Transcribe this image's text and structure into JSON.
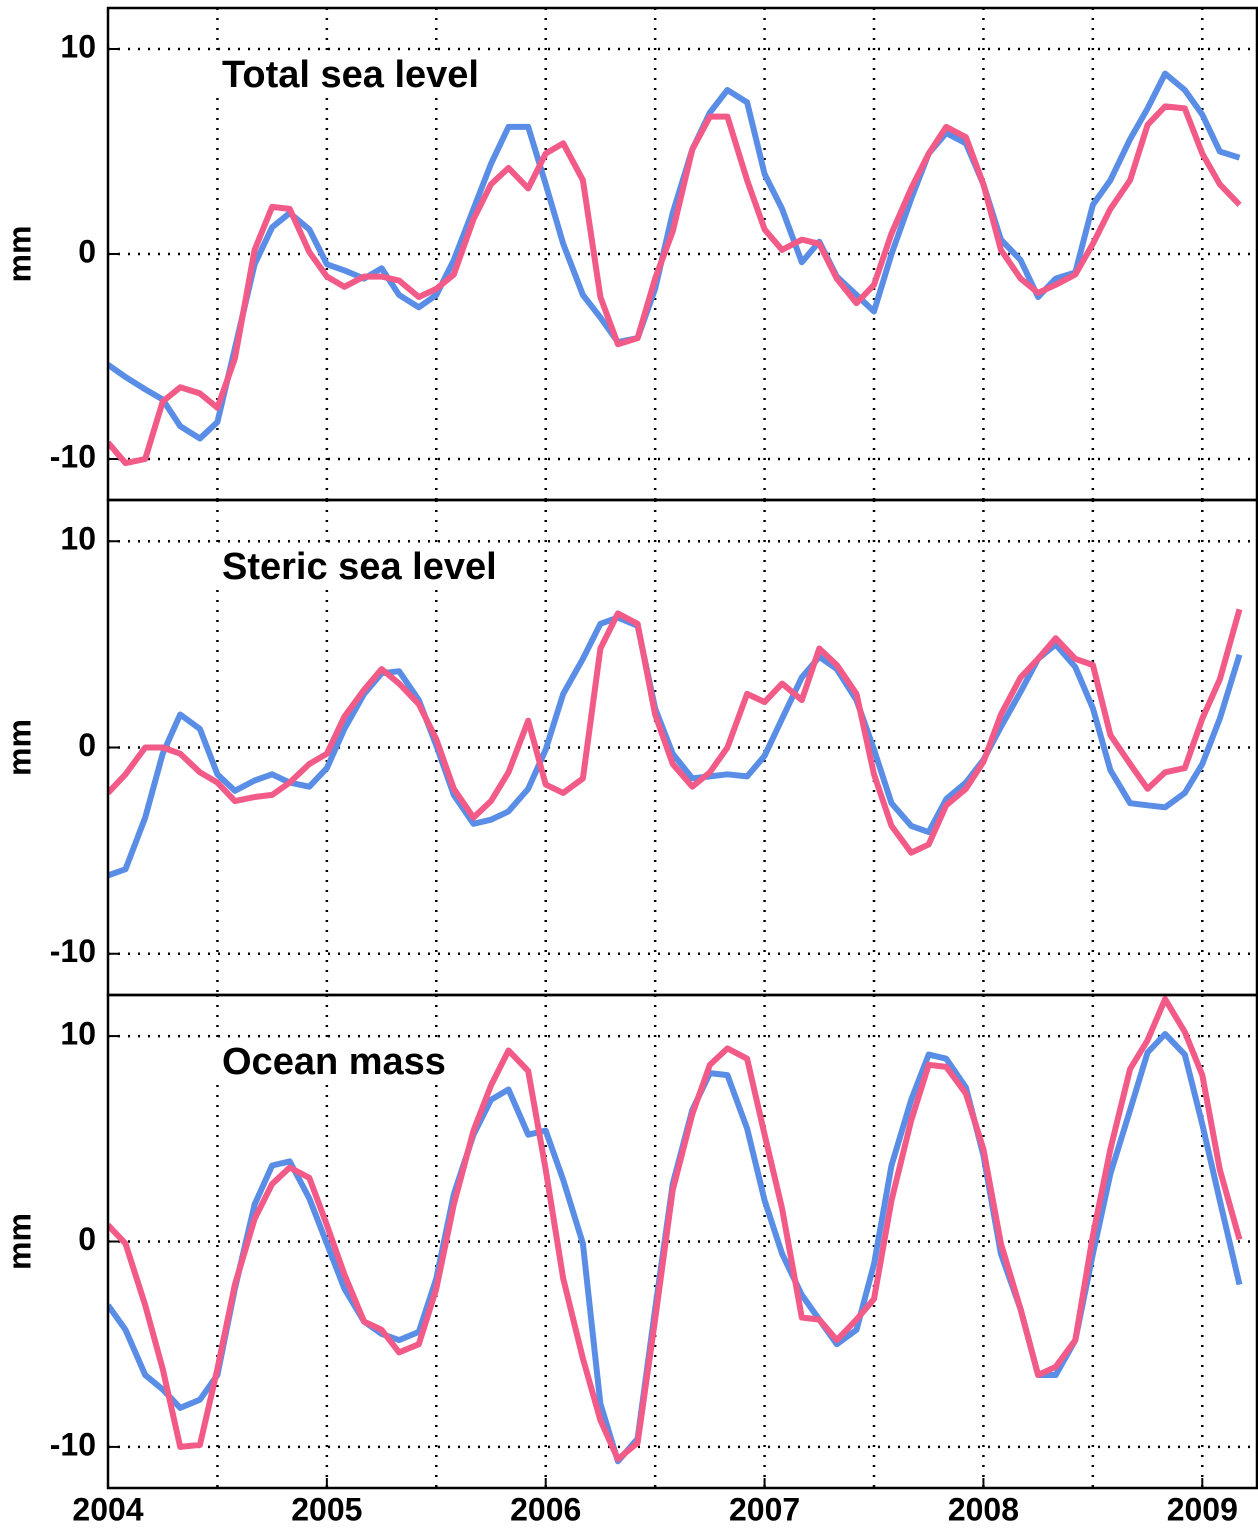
{
  "chart_data": [
    {
      "type": "line",
      "title": "Total sea level",
      "ylabel": "mm",
      "x": [
        2004,
        2004.08,
        2004.17,
        2004.25,
        2004.33,
        2004.42,
        2004.5,
        2004.58,
        2004.67,
        2004.75,
        2004.83,
        2004.92,
        2005,
        2005.08,
        2005.17,
        2005.25,
        2005.33,
        2005.42,
        2005.5,
        2005.58,
        2005.67,
        2005.75,
        2005.83,
        2005.92,
        2006,
        2006.08,
        2006.17,
        2006.25,
        2006.33,
        2006.42,
        2006.5,
        2006.58,
        2006.67,
        2006.75,
        2006.83,
        2006.92,
        2007,
        2007.08,
        2007.17,
        2007.25,
        2007.33,
        2007.42,
        2007.5,
        2007.58,
        2007.67,
        2007.75,
        2007.83,
        2007.92,
        2008,
        2008.08,
        2008.17,
        2008.25,
        2008.33,
        2008.42,
        2008.5,
        2008.58,
        2008.67,
        2008.75,
        2008.83,
        2008.92,
        2009,
        2009.08,
        2009.17
      ],
      "series": [
        {
          "color": "#5a8ee6",
          "values": [
            -5.4,
            -6.0,
            -6.6,
            -7.1,
            -8.4,
            -9.0,
            -8.2,
            -4.6,
            -0.5,
            1.3,
            2.0,
            1.2,
            -0.5,
            -0.8,
            -1.2,
            -0.7,
            -2.0,
            -2.6,
            -2.0,
            -0.3,
            2.2,
            4.4,
            6.2,
            6.2,
            3.4,
            0.5,
            -2.0,
            -3.1,
            -4.3,
            -4.1,
            -1.7,
            2.0,
            5.1,
            6.9,
            8.0,
            7.4,
            3.9,
            2.2,
            -0.4,
            0.6,
            -1.1,
            -2.0,
            -2.8,
            0,
            2.7,
            4.9,
            5.9,
            5.4,
            3.4,
            0.7,
            -0.3,
            -2.1,
            -1.2,
            -0.9,
            2.4,
            3.6,
            5.6,
            7.1,
            8.8,
            8.0,
            6.8,
            5.0,
            4.7
          ]
        },
        {
          "color": "#f25a88",
          "values": [
            -9.2,
            -10.2,
            -10.0,
            -7.2,
            -6.5,
            -6.8,
            -7.5,
            -5.1,
            0.2,
            2.3,
            2.2,
            0.1,
            -1.1,
            -1.6,
            -1.1,
            -1.1,
            -1.3,
            -2.1,
            -1.7,
            -1.0,
            1.7,
            3.4,
            4.2,
            3.2,
            4.9,
            5.4,
            3.6,
            -2.1,
            -4.4,
            -4.1,
            -1.2,
            1.1,
            5.1,
            6.7,
            6.7,
            3.6,
            1.2,
            0.2,
            0.7,
            0.5,
            -1.2,
            -2.4,
            -1.5,
            1.0,
            3.2,
            4.9,
            6.2,
            5.7,
            3.4,
            0.2,
            -1.2,
            -1.9,
            -1.5,
            -1.0,
            0.5,
            2.2,
            3.6,
            6.3,
            7.2,
            7.1,
            4.9,
            3.4,
            2.4
          ]
        }
      ],
      "xlim": [
        2004,
        2009.25
      ],
      "xgrid": [
        2004,
        2004.5,
        2005,
        2005.5,
        2006,
        2006.5,
        2007,
        2007.5,
        2008,
        2008.5,
        2009
      ],
      "ylim": [
        -12,
        12
      ],
      "yticks": [
        -10,
        0,
        10
      ],
      "grid": true
    },
    {
      "type": "line",
      "title": "Steric sea level",
      "ylabel": "mm",
      "x": [
        2004,
        2004.08,
        2004.17,
        2004.25,
        2004.33,
        2004.42,
        2004.5,
        2004.58,
        2004.67,
        2004.75,
        2004.83,
        2004.92,
        2005,
        2005.08,
        2005.17,
        2005.25,
        2005.33,
        2005.42,
        2005.5,
        2005.58,
        2005.67,
        2005.75,
        2005.83,
        2005.92,
        2006,
        2006.08,
        2006.17,
        2006.25,
        2006.33,
        2006.42,
        2006.5,
        2006.58,
        2006.67,
        2006.75,
        2006.83,
        2006.92,
        2007,
        2007.08,
        2007.17,
        2007.25,
        2007.33,
        2007.42,
        2007.5,
        2007.58,
        2007.67,
        2007.75,
        2007.83,
        2007.92,
        2008,
        2008.08,
        2008.17,
        2008.25,
        2008.33,
        2008.42,
        2008.5,
        2008.58,
        2008.67,
        2008.75,
        2008.83,
        2008.92,
        2009,
        2009.08,
        2009.17
      ],
      "series": [
        {
          "color": "#5a8ee6",
          "values": [
            -6.2,
            -5.9,
            -3.4,
            -0.3,
            1.6,
            0.9,
            -1.3,
            -2.1,
            -1.6,
            -1.3,
            -1.7,
            -1.9,
            -1.0,
            0.9,
            2.6,
            3.6,
            3.7,
            2.3,
            0.1,
            -2.3,
            -3.7,
            -3.5,
            -3.1,
            -2.0,
            -0.1,
            2.6,
            4.3,
            6.0,
            6.3,
            5.9,
            1.9,
            -0.3,
            -1.5,
            -1.4,
            -1.3,
            -1.4,
            -0.4,
            1.4,
            3.4,
            4.4,
            3.8,
            2.3,
            -0.1,
            -2.7,
            -3.8,
            -4.1,
            -2.5,
            -1.7,
            -0.6,
            1.0,
            2.7,
            4.3,
            5.0,
            3.9,
            1.9,
            -1.1,
            -2.7,
            -2.8,
            -2.9,
            -2.2,
            -0.8,
            1.4,
            4.5
          ]
        },
        {
          "color": "#f25a88",
          "values": [
            -2.2,
            -1.3,
            0,
            0,
            -0.3,
            -1.2,
            -1.7,
            -2.6,
            -2.4,
            -2.3,
            -1.7,
            -0.8,
            -0.3,
            1.5,
            2.8,
            3.8,
            3.1,
            2.1,
            0.4,
            -2.0,
            -3.4,
            -2.6,
            -1.2,
            1.3,
            -1.8,
            -2.2,
            -1.5,
            4.8,
            6.5,
            6.0,
            1.6,
            -0.8,
            -1.9,
            -1.2,
            0,
            2.6,
            2.2,
            3.1,
            2.3,
            4.8,
            4.0,
            2.6,
            -1.3,
            -3.8,
            -5.1,
            -4.7,
            -2.8,
            -2.0,
            -0.7,
            1.6,
            3.4,
            4.3,
            5.3,
            4.3,
            4.0,
            0.6,
            -0.8,
            -2.0,
            -1.2,
            -1.0,
            1.4,
            3.3,
            6.7
          ]
        }
      ],
      "xlim": [
        2004,
        2009.25
      ],
      "xgrid": [
        2004,
        2004.5,
        2005,
        2005.5,
        2006,
        2006.5,
        2007,
        2007.5,
        2008,
        2008.5,
        2009
      ],
      "ylim": [
        -12,
        12
      ],
      "yticks": [
        -10,
        0,
        10
      ],
      "grid": true
    },
    {
      "type": "line",
      "title": "Ocean mass",
      "ylabel": "mm",
      "x": [
        2004,
        2004.08,
        2004.17,
        2004.25,
        2004.33,
        2004.42,
        2004.5,
        2004.58,
        2004.67,
        2004.75,
        2004.83,
        2004.92,
        2005,
        2005.08,
        2005.17,
        2005.25,
        2005.33,
        2005.42,
        2005.5,
        2005.58,
        2005.67,
        2005.75,
        2005.83,
        2005.92,
        2006,
        2006.08,
        2006.17,
        2006.25,
        2006.33,
        2006.42,
        2006.5,
        2006.58,
        2006.67,
        2006.75,
        2006.83,
        2006.92,
        2007,
        2007.08,
        2007.17,
        2007.25,
        2007.33,
        2007.42,
        2007.5,
        2007.58,
        2007.67,
        2007.75,
        2007.83,
        2007.92,
        2008,
        2008.08,
        2008.17,
        2008.25,
        2008.33,
        2008.42,
        2008.5,
        2008.58,
        2008.67,
        2008.75,
        2008.83,
        2008.92,
        2009,
        2009.08,
        2009.17
      ],
      "series": [
        {
          "color": "#5a8ee6",
          "values": [
            -3.1,
            -4.3,
            -6.5,
            -7.2,
            -8.1,
            -7.7,
            -6.5,
            -2.3,
            1.8,
            3.7,
            3.9,
            2.1,
            -0.1,
            -2.3,
            -3.9,
            -4.5,
            -4.8,
            -4.4,
            -1.8,
            2.3,
            5.2,
            6.9,
            7.4,
            5.2,
            5.4,
            3.0,
            -0.1,
            -7.9,
            -10.7,
            -9.6,
            -3.3,
            2.8,
            6.4,
            8.2,
            8.1,
            5.5,
            2.0,
            -0.6,
            -2.6,
            -3.8,
            -5.0,
            -4.3,
            -1.1,
            3.7,
            6.9,
            9.1,
            8.9,
            7.5,
            4.2,
            -0.6,
            -3.3,
            -6.5,
            -6.5,
            -4.8,
            -0.6,
            3.3,
            6.4,
            9.2,
            10.1,
            9.1,
            5.7,
            2.0,
            -2.1
          ]
        },
        {
          "color": "#f25a88",
          "values": [
            0.8,
            -0.1,
            -3.1,
            -6.2,
            -10.0,
            -9.9,
            -6.2,
            -2.1,
            1.1,
            2.8,
            3.6,
            3.1,
            0.8,
            -1.6,
            -3.9,
            -4.3,
            -5.4,
            -5.0,
            -2.3,
            1.8,
            5.4,
            7.6,
            9.3,
            8.3,
            3.5,
            -1.8,
            -5.7,
            -8.7,
            -10.6,
            -9.8,
            -3.8,
            2.5,
            6.2,
            8.6,
            9.4,
            8.9,
            5.2,
            1.6,
            -3.7,
            -3.8,
            -4.8,
            -3.8,
            -2.8,
            2.0,
            5.9,
            8.6,
            8.5,
            7.2,
            4.5,
            -0.1,
            -3.3,
            -6.5,
            -6.1,
            -4.8,
            0.3,
            4.5,
            8.4,
            9.8,
            11.8,
            10.2,
            8.1,
            3.5,
            0.1
          ]
        }
      ],
      "xlim": [
        2004,
        2009.25
      ],
      "xgrid": [
        2004,
        2004.5,
        2005,
        2005.5,
        2006,
        2006.5,
        2007,
        2007.5,
        2008,
        2008.5,
        2009
      ],
      "xticks": [
        2004,
        2005,
        2006,
        2007,
        2008,
        2009
      ],
      "ylim": [
        -12,
        12
      ],
      "yticks": [
        -10,
        0,
        10
      ],
      "grid": true
    }
  ]
}
